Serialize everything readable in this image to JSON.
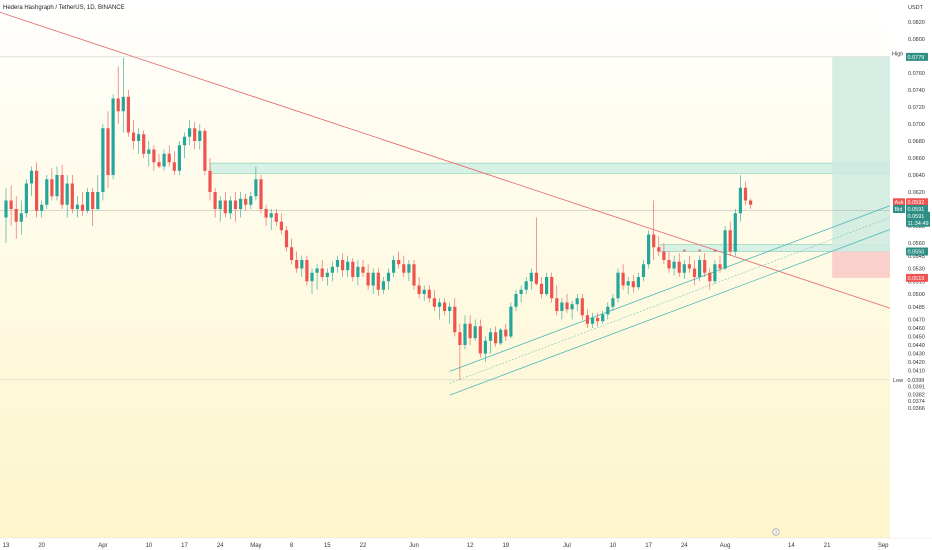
{
  "chart_data": {
    "type": "candlestick",
    "title": "Hedera Hashgraph / TetherUS, 1D, BINANCE",
    "currency": "USDT",
    "y_ticks": [
      0.082,
      0.08,
      0.0779,
      0.076,
      0.074,
      0.072,
      0.07,
      0.068,
      0.066,
      0.064,
      0.062,
      0.06,
      0.058,
      0.056,
      0.0545,
      0.053,
      0.0515,
      0.05,
      0.0485,
      0.047,
      0.046,
      0.045,
      0.044,
      0.043,
      0.042,
      0.041,
      0.0399,
      0.0391,
      0.0382,
      0.0374,
      0.0366
    ],
    "y_tick_labels": [
      "0.0820",
      "0.0800",
      "0.0779",
      "0.0760",
      "0.0740",
      "0.0720",
      "0.0700",
      "0.0680",
      "0.0660",
      "0.0640",
      "0.0620",
      "0.0600",
      "0.0580",
      "0.0560",
      "0.0545",
      "0.0530",
      "0.0515",
      "0.0500",
      "0.0485",
      "0.0470",
      "0.0460",
      "0.0450",
      "0.0440",
      "0.0430",
      "0.0420",
      "0.0410",
      "0.0399",
      "0.0391",
      "0.0382",
      "0.0374",
      "0.0366"
    ],
    "time_labels": [
      {
        "label": "13",
        "day": 0
      },
      {
        "label": "20",
        "day": 7
      },
      {
        "label": "Apr",
        "day": 19
      },
      {
        "label": "10",
        "day": 28
      },
      {
        "label": "17",
        "day": 35
      },
      {
        "label": "24",
        "day": 42
      },
      {
        "label": "May",
        "day": 49
      },
      {
        "label": "8",
        "day": 56
      },
      {
        "label": "15",
        "day": 63
      },
      {
        "label": "22",
        "day": 70
      },
      {
        "label": "Jun",
        "day": 80
      },
      {
        "label": "12",
        "day": 91
      },
      {
        "label": "19",
        "day": 98
      },
      {
        "label": "Jul",
        "day": 110
      },
      {
        "label": "10",
        "day": 119
      },
      {
        "label": "17",
        "day": 126
      },
      {
        "label": "24",
        "day": 133
      },
      {
        "label": "Aug",
        "day": 141
      },
      {
        "label": "14",
        "day": 154
      },
      {
        "label": "21",
        "day": 161
      },
      {
        "label": "Sep",
        "day": 172
      }
    ],
    "candles": [
      {
        "o": 0.059,
        "h": 0.0625,
        "l": 0.056,
        "c": 0.061
      },
      {
        "o": 0.061,
        "h": 0.0628,
        "l": 0.058,
        "c": 0.06
      },
      {
        "o": 0.06,
        "h": 0.0615,
        "l": 0.0565,
        "c": 0.0585
      },
      {
        "o": 0.0585,
        "h": 0.061,
        "l": 0.057,
        "c": 0.0595
      },
      {
        "o": 0.0595,
        "h": 0.0635,
        "l": 0.059,
        "c": 0.063
      },
      {
        "o": 0.063,
        "h": 0.065,
        "l": 0.0615,
        "c": 0.0645
      },
      {
        "o": 0.0645,
        "h": 0.0655,
        "l": 0.059,
        "c": 0.0598
      },
      {
        "o": 0.0598,
        "h": 0.061,
        "l": 0.059,
        "c": 0.0605
      },
      {
        "o": 0.0605,
        "h": 0.064,
        "l": 0.06,
        "c": 0.0635
      },
      {
        "o": 0.0635,
        "h": 0.0648,
        "l": 0.061,
        "c": 0.0615
      },
      {
        "o": 0.0615,
        "h": 0.065,
        "l": 0.061,
        "c": 0.064
      },
      {
        "o": 0.064,
        "h": 0.0652,
        "l": 0.06,
        "c": 0.0605
      },
      {
        "o": 0.0605,
        "h": 0.064,
        "l": 0.059,
        "c": 0.063
      },
      {
        "o": 0.063,
        "h": 0.064,
        "l": 0.0595,
        "c": 0.06
      },
      {
        "o": 0.06,
        "h": 0.0615,
        "l": 0.059,
        "c": 0.0605
      },
      {
        "o": 0.0605,
        "h": 0.062,
        "l": 0.0592,
        "c": 0.0598
      },
      {
        "o": 0.0598,
        "h": 0.0625,
        "l": 0.0595,
        "c": 0.062
      },
      {
        "o": 0.062,
        "h": 0.0625,
        "l": 0.058,
        "c": 0.06
      },
      {
        "o": 0.06,
        "h": 0.064,
        "l": 0.0598,
        "c": 0.062
      },
      {
        "o": 0.062,
        "h": 0.07,
        "l": 0.061,
        "c": 0.0695
      },
      {
        "o": 0.0695,
        "h": 0.0715,
        "l": 0.0625,
        "c": 0.064
      },
      {
        "o": 0.064,
        "h": 0.0735,
        "l": 0.0635,
        "c": 0.073
      },
      {
        "o": 0.073,
        "h": 0.0768,
        "l": 0.07,
        "c": 0.0715
      },
      {
        "o": 0.0715,
        "h": 0.0778,
        "l": 0.069,
        "c": 0.0732
      },
      {
        "o": 0.0732,
        "h": 0.074,
        "l": 0.0685,
        "c": 0.069
      },
      {
        "o": 0.069,
        "h": 0.0705,
        "l": 0.067,
        "c": 0.068
      },
      {
        "o": 0.068,
        "h": 0.0695,
        "l": 0.0665,
        "c": 0.0688
      },
      {
        "o": 0.0688,
        "h": 0.0692,
        "l": 0.066,
        "c": 0.0665
      },
      {
        "o": 0.0665,
        "h": 0.068,
        "l": 0.065,
        "c": 0.067
      },
      {
        "o": 0.067,
        "h": 0.0675,
        "l": 0.0645,
        "c": 0.0655
      },
      {
        "o": 0.0655,
        "h": 0.0665,
        "l": 0.0648,
        "c": 0.065
      },
      {
        "o": 0.065,
        "h": 0.067,
        "l": 0.0645,
        "c": 0.0665
      },
      {
        "o": 0.0665,
        "h": 0.0675,
        "l": 0.065,
        "c": 0.0655
      },
      {
        "o": 0.0655,
        "h": 0.0668,
        "l": 0.064,
        "c": 0.0645
      },
      {
        "o": 0.0645,
        "h": 0.068,
        "l": 0.064,
        "c": 0.0675
      },
      {
        "o": 0.0675,
        "h": 0.069,
        "l": 0.066,
        "c": 0.0685
      },
      {
        "o": 0.0685,
        "h": 0.0705,
        "l": 0.0675,
        "c": 0.0695
      },
      {
        "o": 0.0695,
        "h": 0.0702,
        "l": 0.067,
        "c": 0.068
      },
      {
        "o": 0.068,
        "h": 0.07,
        "l": 0.067,
        "c": 0.0692
      },
      {
        "o": 0.0692,
        "h": 0.0695,
        "l": 0.064,
        "c": 0.0645
      },
      {
        "o": 0.0645,
        "h": 0.066,
        "l": 0.061,
        "c": 0.062
      },
      {
        "o": 0.062,
        "h": 0.0625,
        "l": 0.059,
        "c": 0.06
      },
      {
        "o": 0.06,
        "h": 0.0615,
        "l": 0.0585,
        "c": 0.061
      },
      {
        "o": 0.061,
        "h": 0.062,
        "l": 0.059,
        "c": 0.0595
      },
      {
        "o": 0.0595,
        "h": 0.0615,
        "l": 0.0588,
        "c": 0.061
      },
      {
        "o": 0.061,
        "h": 0.062,
        "l": 0.0585,
        "c": 0.06
      },
      {
        "o": 0.06,
        "h": 0.062,
        "l": 0.059,
        "c": 0.0612
      },
      {
        "o": 0.0612,
        "h": 0.0618,
        "l": 0.0598,
        "c": 0.0605
      },
      {
        "o": 0.0605,
        "h": 0.062,
        "l": 0.06,
        "c": 0.0615
      },
      {
        "o": 0.0615,
        "h": 0.065,
        "l": 0.061,
        "c": 0.0635
      },
      {
        "o": 0.0635,
        "h": 0.064,
        "l": 0.0595,
        "c": 0.06
      },
      {
        "o": 0.06,
        "h": 0.0605,
        "l": 0.058,
        "c": 0.059
      },
      {
        "o": 0.059,
        "h": 0.06,
        "l": 0.0575,
        "c": 0.0595
      },
      {
        "o": 0.0595,
        "h": 0.06,
        "l": 0.058,
        "c": 0.0585
      },
      {
        "o": 0.0585,
        "h": 0.0595,
        "l": 0.057,
        "c": 0.0575
      },
      {
        "o": 0.0575,
        "h": 0.058,
        "l": 0.055,
        "c": 0.0555
      },
      {
        "o": 0.0555,
        "h": 0.0565,
        "l": 0.0535,
        "c": 0.054
      },
      {
        "o": 0.054,
        "h": 0.055,
        "l": 0.0525,
        "c": 0.053
      },
      {
        "o": 0.053,
        "h": 0.0545,
        "l": 0.052,
        "c": 0.054
      },
      {
        "o": 0.054,
        "h": 0.0545,
        "l": 0.051,
        "c": 0.0515
      },
      {
        "o": 0.0515,
        "h": 0.053,
        "l": 0.05,
        "c": 0.0525
      },
      {
        "o": 0.0525,
        "h": 0.0535,
        "l": 0.0505,
        "c": 0.053
      },
      {
        "o": 0.053,
        "h": 0.054,
        "l": 0.0515,
        "c": 0.052
      },
      {
        "o": 0.052,
        "h": 0.053,
        "l": 0.051,
        "c": 0.0525
      },
      {
        "o": 0.0525,
        "h": 0.0538,
        "l": 0.0515,
        "c": 0.0532
      },
      {
        "o": 0.0532,
        "h": 0.0545,
        "l": 0.0525,
        "c": 0.054
      },
      {
        "o": 0.054,
        "h": 0.0548,
        "l": 0.052,
        "c": 0.0528
      },
      {
        "o": 0.0528,
        "h": 0.0545,
        "l": 0.052,
        "c": 0.0538
      },
      {
        "o": 0.0538,
        "h": 0.0542,
        "l": 0.0515,
        "c": 0.052
      },
      {
        "o": 0.052,
        "h": 0.054,
        "l": 0.051,
        "c": 0.0532
      },
      {
        "o": 0.0532,
        "h": 0.054,
        "l": 0.052,
        "c": 0.0525
      },
      {
        "o": 0.0525,
        "h": 0.0535,
        "l": 0.0505,
        "c": 0.051
      },
      {
        "o": 0.051,
        "h": 0.053,
        "l": 0.05,
        "c": 0.0525
      },
      {
        "o": 0.0525,
        "h": 0.053,
        "l": 0.0498,
        "c": 0.0505
      },
      {
        "o": 0.0505,
        "h": 0.052,
        "l": 0.05,
        "c": 0.0515
      },
      {
        "o": 0.0515,
        "h": 0.053,
        "l": 0.0505,
        "c": 0.0525
      },
      {
        "o": 0.0525,
        "h": 0.0545,
        "l": 0.052,
        "c": 0.054
      },
      {
        "o": 0.054,
        "h": 0.055,
        "l": 0.053,
        "c": 0.0535
      },
      {
        "o": 0.0535,
        "h": 0.0545,
        "l": 0.052,
        "c": 0.0525
      },
      {
        "o": 0.0525,
        "h": 0.054,
        "l": 0.0515,
        "c": 0.0535
      },
      {
        "o": 0.0535,
        "h": 0.054,
        "l": 0.0505,
        "c": 0.051
      },
      {
        "o": 0.051,
        "h": 0.052,
        "l": 0.0495,
        "c": 0.05
      },
      {
        "o": 0.05,
        "h": 0.051,
        "l": 0.0492,
        "c": 0.0505
      },
      {
        "o": 0.0505,
        "h": 0.051,
        "l": 0.049,
        "c": 0.0495
      },
      {
        "o": 0.0495,
        "h": 0.0505,
        "l": 0.048,
        "c": 0.0485
      },
      {
        "o": 0.0485,
        "h": 0.0495,
        "l": 0.047,
        "c": 0.049
      },
      {
        "o": 0.049,
        "h": 0.0495,
        "l": 0.0475,
        "c": 0.048
      },
      {
        "o": 0.048,
        "h": 0.049,
        "l": 0.0465,
        "c": 0.0485
      },
      {
        "o": 0.0485,
        "h": 0.0495,
        "l": 0.045,
        "c": 0.0455
      },
      {
        "o": 0.0455,
        "h": 0.0465,
        "l": 0.0399,
        "c": 0.044
      },
      {
        "o": 0.044,
        "h": 0.0475,
        "l": 0.0435,
        "c": 0.0465
      },
      {
        "o": 0.0465,
        "h": 0.0475,
        "l": 0.044,
        "c": 0.0448
      },
      {
        "o": 0.0448,
        "h": 0.047,
        "l": 0.0445,
        "c": 0.0462
      },
      {
        "o": 0.0462,
        "h": 0.047,
        "l": 0.0425,
        "c": 0.043
      },
      {
        "o": 0.043,
        "h": 0.045,
        "l": 0.042,
        "c": 0.0445
      },
      {
        "o": 0.0445,
        "h": 0.046,
        "l": 0.043,
        "c": 0.0455
      },
      {
        "o": 0.0455,
        "h": 0.0462,
        "l": 0.0438,
        "c": 0.0442
      },
      {
        "o": 0.0442,
        "h": 0.046,
        "l": 0.044,
        "c": 0.0458
      },
      {
        "o": 0.0458,
        "h": 0.0465,
        "l": 0.0445,
        "c": 0.045
      },
      {
        "o": 0.045,
        "h": 0.049,
        "l": 0.0448,
        "c": 0.0485
      },
      {
        "o": 0.0485,
        "h": 0.0505,
        "l": 0.048,
        "c": 0.05
      },
      {
        "o": 0.05,
        "h": 0.051,
        "l": 0.049,
        "c": 0.0505
      },
      {
        "o": 0.0505,
        "h": 0.052,
        "l": 0.05,
        "c": 0.0515
      },
      {
        "o": 0.0515,
        "h": 0.053,
        "l": 0.0505,
        "c": 0.0525
      },
      {
        "o": 0.0525,
        "h": 0.059,
        "l": 0.051,
        "c": 0.0512
      },
      {
        "o": 0.0512,
        "h": 0.052,
        "l": 0.0495,
        "c": 0.05
      },
      {
        "o": 0.05,
        "h": 0.0525,
        "l": 0.0498,
        "c": 0.052
      },
      {
        "o": 0.052,
        "h": 0.0525,
        "l": 0.049,
        "c": 0.0495
      },
      {
        "o": 0.0495,
        "h": 0.051,
        "l": 0.0475,
        "c": 0.048
      },
      {
        "o": 0.048,
        "h": 0.0495,
        "l": 0.047,
        "c": 0.049
      },
      {
        "o": 0.049,
        "h": 0.05,
        "l": 0.0478,
        "c": 0.0482
      },
      {
        "o": 0.0482,
        "h": 0.0492,
        "l": 0.047,
        "c": 0.0488
      },
      {
        "o": 0.0488,
        "h": 0.05,
        "l": 0.048,
        "c": 0.0495
      },
      {
        "o": 0.0495,
        "h": 0.05,
        "l": 0.047,
        "c": 0.0475
      },
      {
        "o": 0.0475,
        "h": 0.0482,
        "l": 0.046,
        "c": 0.0465
      },
      {
        "o": 0.0465,
        "h": 0.0478,
        "l": 0.046,
        "c": 0.0472
      },
      {
        "o": 0.0472,
        "h": 0.0478,
        "l": 0.0462,
        "c": 0.0468
      },
      {
        "o": 0.0468,
        "h": 0.048,
        "l": 0.0465,
        "c": 0.0476
      },
      {
        "o": 0.0476,
        "h": 0.049,
        "l": 0.047,
        "c": 0.0485
      },
      {
        "o": 0.0485,
        "h": 0.05,
        "l": 0.048,
        "c": 0.0495
      },
      {
        "o": 0.0495,
        "h": 0.053,
        "l": 0.049,
        "c": 0.0525
      },
      {
        "o": 0.0525,
        "h": 0.0535,
        "l": 0.0505,
        "c": 0.051
      },
      {
        "o": 0.051,
        "h": 0.052,
        "l": 0.05,
        "c": 0.0515
      },
      {
        "o": 0.0515,
        "h": 0.0522,
        "l": 0.0502,
        "c": 0.0508
      },
      {
        "o": 0.0508,
        "h": 0.0525,
        "l": 0.0505,
        "c": 0.052
      },
      {
        "o": 0.052,
        "h": 0.054,
        "l": 0.0515,
        "c": 0.0535
      },
      {
        "o": 0.0535,
        "h": 0.0575,
        "l": 0.053,
        "c": 0.057
      },
      {
        "o": 0.057,
        "h": 0.061,
        "l": 0.054,
        "c": 0.0555
      },
      {
        "o": 0.0555,
        "h": 0.0568,
        "l": 0.0545,
        "c": 0.055
      },
      {
        "o": 0.055,
        "h": 0.056,
        "l": 0.0535,
        "c": 0.054
      },
      {
        "o": 0.054,
        "h": 0.055,
        "l": 0.0525,
        "c": 0.053
      },
      {
        "o": 0.053,
        "h": 0.0545,
        "l": 0.0522,
        "c": 0.0538
      },
      {
        "o": 0.0538,
        "h": 0.0548,
        "l": 0.052,
        "c": 0.0525
      },
      {
        "o": 0.0525,
        "h": 0.054,
        "l": 0.0518,
        "c": 0.0535
      },
      {
        "o": 0.0535,
        "h": 0.0545,
        "l": 0.0525,
        "c": 0.053
      },
      {
        "o": 0.053,
        "h": 0.054,
        "l": 0.051,
        "c": 0.052
      },
      {
        "o": 0.052,
        "h": 0.0545,
        "l": 0.0515,
        "c": 0.054
      },
      {
        "o": 0.054,
        "h": 0.0548,
        "l": 0.052,
        "c": 0.0525
      },
      {
        "o": 0.0525,
        "h": 0.053,
        "l": 0.0505,
        "c": 0.0515
      },
      {
        "o": 0.0515,
        "h": 0.054,
        "l": 0.0512,
        "c": 0.0535
      },
      {
        "o": 0.0535,
        "h": 0.0545,
        "l": 0.0525,
        "c": 0.053
      },
      {
        "o": 0.053,
        "h": 0.058,
        "l": 0.0528,
        "c": 0.0575
      },
      {
        "o": 0.0575,
        "h": 0.0585,
        "l": 0.0545,
        "c": 0.055
      },
      {
        "o": 0.055,
        "h": 0.06,
        "l": 0.0545,
        "c": 0.0595
      },
      {
        "o": 0.0595,
        "h": 0.064,
        "l": 0.0585,
        "c": 0.0625
      },
      {
        "o": 0.0625,
        "h": 0.0632,
        "l": 0.0605,
        "c": 0.061
      },
      {
        "o": 0.061,
        "h": 0.0612,
        "l": 0.06,
        "c": 0.0605
      }
    ],
    "trendline": {
      "day1": -8,
      "p1": 0.0845,
      "day2": 180,
      "p2": 0.047
    },
    "channel": {
      "day1": 87,
      "p1": 0.0395,
      "day2": 180,
      "p2": 0.0605,
      "width": 0.0014
    },
    "resistance_zone": {
      "top": 0.0654,
      "bottom": 0.0642,
      "day_start": 40
    },
    "support_zone": {
      "top": 0.0558,
      "bottom": 0.055,
      "day_start": 128,
      "day_end": 177
    },
    "position": {
      "day_start": 162,
      "day_end": 183,
      "target": 0.0779,
      "entry": 0.055,
      "stop": 0.0519
    },
    "hlines": [
      0.0779,
      0.0399
    ],
    "current_line": 0.0598,
    "tags": {
      "high": {
        "label": "High",
        "value": "0.0779"
      },
      "low": {
        "label": "Low",
        "value": "0.0399"
      },
      "ask": {
        "label": "Ask",
        "value": "0.0592"
      },
      "bid": {
        "label": "Bid",
        "value": "0.0591"
      },
      "last": {
        "value": "0.0591",
        "countdown": "11:34:49"
      },
      "entry": {
        "value": "0.0550"
      },
      "stop": {
        "value": "0.0519"
      },
      "target": {
        "value": "0.0779"
      }
    },
    "colors": {
      "up": "#26a69a",
      "down": "#ef5350",
      "trend": "#e57373",
      "channel": "#4fb8b8",
      "bg_top": "#ffffff",
      "bg_bottom": "#fdf6d2",
      "zone": "#d8f1e7",
      "zone_border": "#69c0a5",
      "profit": "#cfeadf",
      "loss": "#f9cbc6",
      "tag_green": "#2f8f86",
      "tag_red": "#ef5350"
    }
  }
}
